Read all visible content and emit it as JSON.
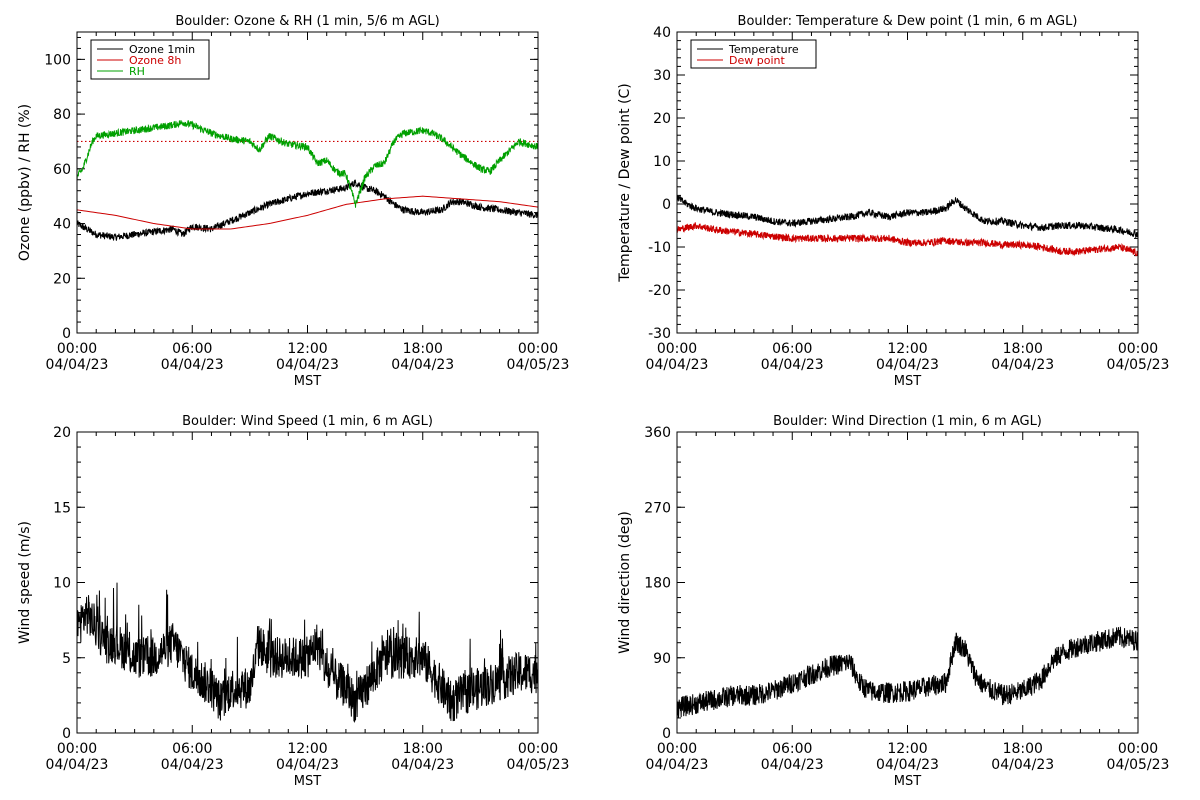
{
  "chart_data": [
    {
      "type": "line",
      "title": "Boulder: Ozone & RH (1 min, 5/6 m AGL)",
      "xlabel": "MST",
      "ylabel": "Ozone (ppbv) / RH (%)",
      "xlim": [
        0,
        24
      ],
      "ylim": [
        0,
        110
      ],
      "yticks": [
        0,
        20,
        40,
        60,
        80,
        100
      ],
      "xtick_times": [
        "00:00",
        "06:00",
        "12:00",
        "18:00",
        "00:00"
      ],
      "xtick_dates": [
        "04/04/23",
        "04/04/23",
        "04/04/23",
        "04/04/23",
        "04/05/23"
      ],
      "legend_position": "top-left",
      "series": [
        {
          "name": "Ozone 1min",
          "color": "#000000",
          "noisy": true,
          "x": [
            0,
            0.5,
            1,
            2,
            3,
            4,
            5,
            5.5,
            6,
            7,
            8,
            9,
            10,
            11,
            12,
            13,
            14,
            14.5,
            15,
            15.5,
            16,
            16.5,
            17,
            18,
            19,
            19.5,
            20,
            21,
            22,
            23,
            24
          ],
          "y": [
            40,
            38,
            36,
            35,
            36,
            37,
            38,
            36,
            39,
            38,
            41,
            44,
            47,
            49,
            51,
            52,
            53,
            55,
            53,
            52,
            50,
            47,
            45,
            44,
            45,
            48,
            48,
            46,
            45,
            44,
            43
          ]
        },
        {
          "name": "Ozone 8h",
          "color": "#cc0000",
          "noisy": false,
          "x": [
            0,
            2,
            4,
            6,
            8,
            10,
            12,
            14,
            16,
            18,
            20,
            22,
            24
          ],
          "y": [
            45,
            43,
            40,
            38,
            38,
            40,
            43,
            47,
            49,
            50,
            49,
            48,
            46
          ]
        },
        {
          "name": "RH",
          "color": "#00a000",
          "noisy": true,
          "x": [
            0,
            0.3,
            0.8,
            1,
            2,
            3,
            4,
            5,
            5.5,
            6,
            7,
            7.5,
            8,
            9,
            9.5,
            10,
            11,
            12,
            12.5,
            13,
            13.5,
            14,
            14.5,
            15,
            15.5,
            16,
            16.5,
            17,
            18,
            18.5,
            19,
            20,
            21,
            21.5,
            22,
            23,
            24
          ],
          "y": [
            57,
            60,
            70,
            72,
            73,
            74,
            75,
            76,
            77,
            76,
            73,
            72,
            71,
            70,
            67,
            72,
            69,
            68,
            62,
            63,
            59,
            58,
            47,
            57,
            61,
            62,
            70,
            73,
            74,
            73,
            71,
            65,
            60,
            59,
            63,
            70,
            68
          ]
        }
      ],
      "reference_lines": [
        {
          "y": 70,
          "color": "#cc0000",
          "style": "dotted"
        }
      ]
    },
    {
      "type": "line",
      "title": "Boulder: Temperature & Dew point (1 min, 6 m AGL)",
      "xlabel": "MST",
      "ylabel": "Temperature / Dew point (C)",
      "xlim": [
        0,
        24
      ],
      "ylim": [
        -30,
        40
      ],
      "yticks": [
        -30,
        -20,
        -10,
        0,
        10,
        20,
        30,
        40
      ],
      "xtick_times": [
        "00:00",
        "06:00",
        "12:00",
        "18:00",
        "00:00"
      ],
      "xtick_dates": [
        "04/04/23",
        "04/04/23",
        "04/04/23",
        "04/04/23",
        "04/05/23"
      ],
      "legend_position": "top-left",
      "series": [
        {
          "name": "Temperature",
          "color": "#000000",
          "noisy": true,
          "x": [
            0,
            0.5,
            1,
            2,
            3,
            4,
            5,
            6,
            7,
            8,
            9,
            10,
            11,
            12,
            13,
            14,
            14.5,
            15,
            16,
            17,
            18,
            19,
            20,
            21,
            22,
            23,
            24
          ],
          "y": [
            1.5,
            0,
            -1,
            -2,
            -2.5,
            -3,
            -4,
            -4.5,
            -4,
            -3.5,
            -3,
            -2,
            -3,
            -2,
            -2,
            -1,
            1,
            -1,
            -4,
            -4,
            -5,
            -5.5,
            -5,
            -5,
            -5.5,
            -6,
            -7
          ]
        },
        {
          "name": "Dew point",
          "color": "#cc0000",
          "noisy": true,
          "x": [
            0,
            1,
            2,
            3,
            4,
            5,
            6,
            7,
            8,
            9,
            10,
            11,
            12,
            13,
            14,
            15,
            16,
            17,
            18,
            19,
            20,
            21,
            22,
            23,
            24
          ],
          "y": [
            -6,
            -5,
            -6,
            -6.5,
            -7,
            -7.5,
            -8,
            -8,
            -8,
            -8,
            -8,
            -8,
            -9,
            -9,
            -8.5,
            -9,
            -9,
            -9.5,
            -9.5,
            -10,
            -11,
            -11,
            -10.5,
            -10,
            -11.5
          ]
        }
      ]
    },
    {
      "type": "line",
      "title": "Boulder: Wind Speed (1 min, 6 m AGL)",
      "xlabel": "MST",
      "ylabel": "Wind speed (m/s)",
      "xlim": [
        0,
        24
      ],
      "ylim": [
        0,
        20
      ],
      "yticks": [
        0,
        5,
        10,
        15,
        20
      ],
      "xtick_times": [
        "00:00",
        "06:00",
        "12:00",
        "18:00",
        "00:00"
      ],
      "xtick_dates": [
        "04/04/23",
        "04/04/23",
        "04/04/23",
        "04/04/23",
        "04/05/23"
      ],
      "series": [
        {
          "name": "",
          "color": "#000000",
          "noisy": true,
          "x": [
            0,
            0.5,
            1,
            1.5,
            2,
            3,
            4,
            5,
            6,
            7,
            7.5,
            8,
            9,
            9.5,
            10,
            11,
            12,
            12.5,
            13,
            14,
            14.5,
            15,
            16,
            17,
            18,
            18.5,
            19,
            19.5,
            20,
            21,
            22,
            23,
            24
          ],
          "y": [
            7,
            8,
            7,
            6,
            6,
            5,
            5,
            6,
            4,
            3,
            2,
            3,
            3,
            6,
            5,
            5,
            5,
            6,
            4,
            3,
            2,
            3,
            5,
            5,
            5,
            4,
            3,
            2,
            2.5,
            3,
            3.5,
            4,
            4
          ]
        }
      ]
    },
    {
      "type": "line",
      "title": "Boulder: Wind Direction (1 min, 6 m AGL)",
      "xlabel": "MST",
      "ylabel": "Wind direction (deg)",
      "xlim": [
        0,
        24
      ],
      "ylim": [
        0,
        360
      ],
      "yticks": [
        0,
        90,
        180,
        270,
        360
      ],
      "xtick_times": [
        "00:00",
        "06:00",
        "12:00",
        "18:00",
        "00:00"
      ],
      "xtick_dates": [
        "04/04/23",
        "04/04/23",
        "04/04/23",
        "04/04/23",
        "04/05/23"
      ],
      "series": [
        {
          "name": "",
          "color": "#000000",
          "noisy": true,
          "x": [
            0,
            1,
            2,
            3,
            4,
            5,
            5.5,
            6,
            7,
            8,
            9,
            9.5,
            10,
            11,
            12,
            13,
            14,
            14.5,
            15,
            15.5,
            16,
            17,
            18,
            19,
            19.5,
            20,
            21,
            22,
            23,
            24
          ],
          "y": [
            30,
            35,
            40,
            45,
            45,
            50,
            55,
            60,
            70,
            80,
            85,
            60,
            50,
            48,
            50,
            55,
            60,
            110,
            100,
            70,
            55,
            45,
            50,
            65,
            85,
            95,
            105,
            110,
            115,
            110
          ]
        }
      ]
    }
  ]
}
